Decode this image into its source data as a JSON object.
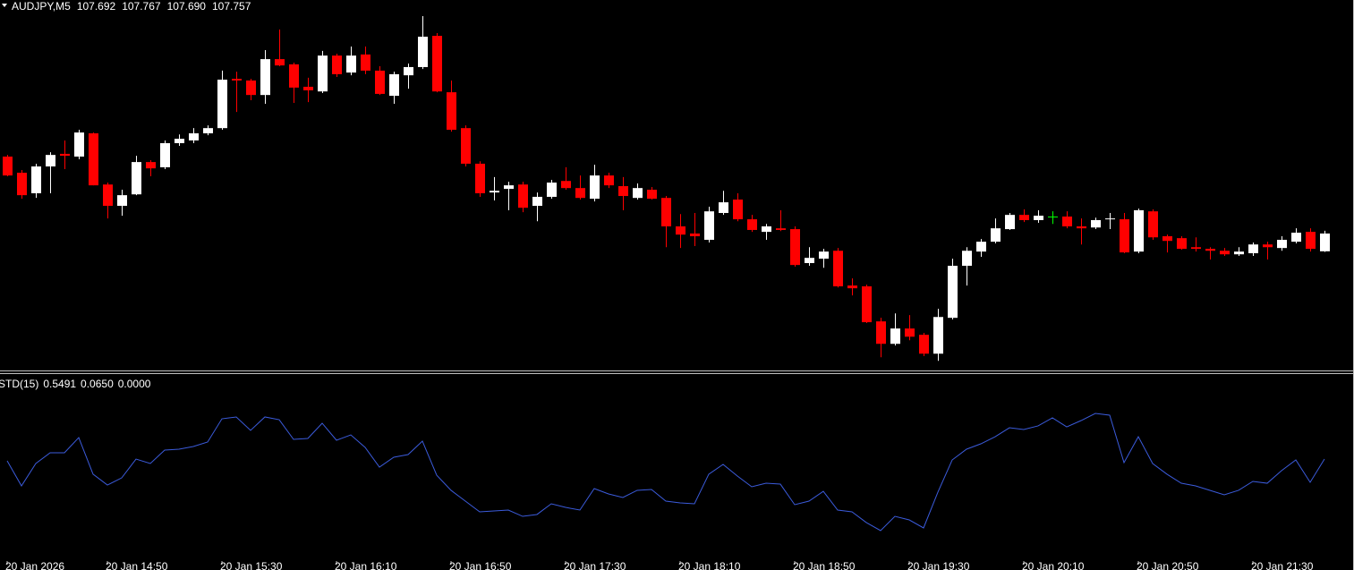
{
  "chart_data": [
    {
      "type": "candlestick",
      "title": "AUDJPY,M5",
      "last_bar_labels": [
        "107.692",
        "107.767",
        "107.690",
        "107.757"
      ],
      "up_color": "#ffffff",
      "down_color": "#ff0000",
      "doji_color": "#00ff00",
      "ylim": [
        107.26,
        108.61
      ],
      "open": [
        108.038,
        107.979,
        107.904,
        108.002,
        108.048,
        108.038,
        108.123,
        107.936,
        107.858,
        107.9,
        108.018,
        107.999,
        108.087,
        108.097,
        108.123,
        108.142,
        108.322,
        108.316,
        108.263,
        108.394,
        108.375,
        108.293,
        108.276,
        108.407,
        108.345,
        108.411,
        108.352,
        108.26,
        108.335,
        108.365,
        108.479,
        108.273,
        108.142,
        108.012,
        107.907,
        107.92,
        107.936,
        107.858,
        107.891,
        107.949,
        107.923,
        107.884,
        107.969,
        107.93,
        107.887,
        107.917,
        107.887,
        107.783,
        107.757,
        107.734,
        107.832,
        107.881,
        107.809,
        107.763,
        107.776,
        107.773,
        107.649,
        107.665,
        107.694,
        107.567,
        107.564,
        107.436,
        107.354,
        107.41,
        107.387,
        107.318,
        107.449,
        107.639,
        107.691,
        107.727,
        107.773,
        107.825,
        107.806,
        107.819,
        107.819,
        107.783,
        107.779,
        107.809,
        107.809,
        107.691,
        107.838,
        107.747,
        107.74,
        107.707,
        107.701,
        107.694,
        107.681,
        107.685,
        107.717,
        107.704,
        107.727,
        107.763,
        107.692
      ],
      "high": [
        108.044,
        107.989,
        108.012,
        108.054,
        108.097,
        108.136,
        108.126,
        107.943,
        107.917,
        108.041,
        108.025,
        108.097,
        108.119,
        108.142,
        108.152,
        108.352,
        108.348,
        108.322,
        108.427,
        108.502,
        108.381,
        108.326,
        108.424,
        108.414,
        108.44,
        108.44,
        108.368,
        108.348,
        108.378,
        108.551,
        108.489,
        108.316,
        108.152,
        108.021,
        107.963,
        107.946,
        107.946,
        107.907,
        107.953,
        107.999,
        107.969,
        108.008,
        107.979,
        107.963,
        107.94,
        107.927,
        107.894,
        107.828,
        107.832,
        107.855,
        107.913,
        107.904,
        107.825,
        107.792,
        107.842,
        107.783,
        107.707,
        107.701,
        107.704,
        107.593,
        107.57,
        107.449,
        107.465,
        107.459,
        107.394,
        107.482,
        107.665,
        107.707,
        107.737,
        107.812,
        107.832,
        107.845,
        107.842,
        107.838,
        107.838,
        107.812,
        107.815,
        107.832,
        107.832,
        107.848,
        107.845,
        107.753,
        107.747,
        107.743,
        107.707,
        107.704,
        107.707,
        107.724,
        107.727,
        107.747,
        107.776,
        107.776,
        107.767
      ],
      "low": [
        107.966,
        107.884,
        107.887,
        107.904,
        107.992,
        108.028,
        107.933,
        107.812,
        107.822,
        107.897,
        107.966,
        107.992,
        108.077,
        108.087,
        108.116,
        108.136,
        108.201,
        108.244,
        108.231,
        108.368,
        108.234,
        108.237,
        108.27,
        108.329,
        108.335,
        108.339,
        108.263,
        108.231,
        108.286,
        108.358,
        108.273,
        108.129,
        108.002,
        107.891,
        107.878,
        107.842,
        107.835,
        107.802,
        107.884,
        107.917,
        107.881,
        107.874,
        107.923,
        107.842,
        107.881,
        107.881,
        107.707,
        107.704,
        107.711,
        107.724,
        107.825,
        107.802,
        107.763,
        107.734,
        107.766,
        107.636,
        107.639,
        107.632,
        107.56,
        107.531,
        107.43,
        107.305,
        107.348,
        107.367,
        107.309,
        107.292,
        107.443,
        107.567,
        107.672,
        107.721,
        107.77,
        107.799,
        107.796,
        107.792,
        107.776,
        107.717,
        107.773,
        107.773,
        107.685,
        107.685,
        107.734,
        107.688,
        107.698,
        107.691,
        107.662,
        107.675,
        107.675,
        107.675,
        107.662,
        107.694,
        107.721,
        107.691,
        107.69
      ],
      "close": [
        107.969,
        107.897,
        108.002,
        108.044,
        108.041,
        108.126,
        107.933,
        107.858,
        107.897,
        108.018,
        107.995,
        108.087,
        108.103,
        108.123,
        108.142,
        108.319,
        108.316,
        108.263,
        108.394,
        108.371,
        108.29,
        108.28,
        108.407,
        108.339,
        108.407,
        108.352,
        108.267,
        108.339,
        108.365,
        108.476,
        108.276,
        108.136,
        108.012,
        107.904,
        107.913,
        107.933,
        107.851,
        107.891,
        107.943,
        107.923,
        107.887,
        107.969,
        107.933,
        107.894,
        107.923,
        107.884,
        107.783,
        107.753,
        107.747,
        107.838,
        107.871,
        107.809,
        107.77,
        107.783,
        107.77,
        107.642,
        107.668,
        107.691,
        107.564,
        107.557,
        107.433,
        107.354,
        107.41,
        107.38,
        107.318,
        107.452,
        107.639,
        107.694,
        107.727,
        107.776,
        107.825,
        107.806,
        107.822,
        107.819,
        107.783,
        107.776,
        107.806,
        107.812,
        107.688,
        107.842,
        107.743,
        107.73,
        107.701,
        107.701,
        107.694,
        107.681,
        107.691,
        107.717,
        107.707,
        107.734,
        107.76,
        107.701,
        107.757
      ]
    },
    {
      "type": "line",
      "title": "STD(15)",
      "header_values": [
        {
          "value": 0.5491,
          "label": "0.5491"
        },
        {
          "value": 0.065,
          "label": "0.0650"
        },
        {
          "value": 0,
          "label": "0.0000"
        }
      ],
      "color": "#3b5bdb",
      "ylim": [
        0,
        0.2
      ],
      "categories": [
        "20 Jan 2026",
        null,
        null,
        null,
        null,
        null,
        null,
        "20 Jan 14:50",
        null,
        null,
        null,
        null,
        null,
        null,
        null,
        "20 Jan 15:30",
        null,
        null,
        null,
        null,
        null,
        null,
        null,
        "20 Jan 16:10",
        null,
        null,
        null,
        null,
        null,
        null,
        null,
        "20 Jan 16:50",
        null,
        null,
        null,
        null,
        null,
        null,
        null,
        "20 Jan 17:30",
        null,
        null,
        null,
        null,
        null,
        null,
        null,
        "20 Jan 18:10",
        null,
        null,
        null,
        null,
        null,
        null,
        null,
        "20 Jan 18:50",
        null,
        null,
        null,
        null,
        null,
        null,
        null,
        "20 Jan 19:30",
        null,
        null,
        null,
        null,
        null,
        null,
        null,
        "20 Jan 20:10",
        null,
        null,
        null,
        null,
        null,
        null,
        null,
        "20 Jan 20:50",
        null,
        null,
        null,
        null,
        null,
        null,
        null,
        "20 Jan 21:30",
        null,
        null,
        null,
        null,
        null
      ],
      "values": [
        0.1222,
        0.0911,
        0.1189,
        0.1322,
        0.1322,
        0.1511,
        0.1056,
        0.0922,
        0.1011,
        0.1244,
        0.1189,
        0.1356,
        0.1367,
        0.14,
        0.1456,
        0.1744,
        0.1767,
        0.16,
        0.1767,
        0.1733,
        0.1489,
        0.15,
        0.1689,
        0.1478,
        0.1544,
        0.1389,
        0.1144,
        0.1267,
        0.13,
        0.1467,
        0.1044,
        0.0856,
        0.0722,
        0.0589,
        0.06,
        0.0611,
        0.0533,
        0.0556,
        0.0689,
        0.0644,
        0.0611,
        0.0878,
        0.0811,
        0.0767,
        0.0856,
        0.0867,
        0.0722,
        0.07,
        0.0689,
        0.1056,
        0.1178,
        0.1033,
        0.09,
        0.0944,
        0.0933,
        0.0678,
        0.0722,
        0.0844,
        0.0611,
        0.0589,
        0.0456,
        0.0356,
        0.0533,
        0.0489,
        0.0389,
        0.0833,
        0.1233,
        0.1367,
        0.1433,
        0.1522,
        0.1633,
        0.1611,
        0.1656,
        0.1756,
        0.1644,
        0.1722,
        0.1811,
        0.1789,
        0.12,
        0.1522,
        0.1189,
        0.1056,
        0.0944,
        0.0911,
        0.0856,
        0.08,
        0.0856,
        0.0967,
        0.0944,
        0.11,
        0.1233,
        0.0956,
        0.1244
      ]
    }
  ]
}
